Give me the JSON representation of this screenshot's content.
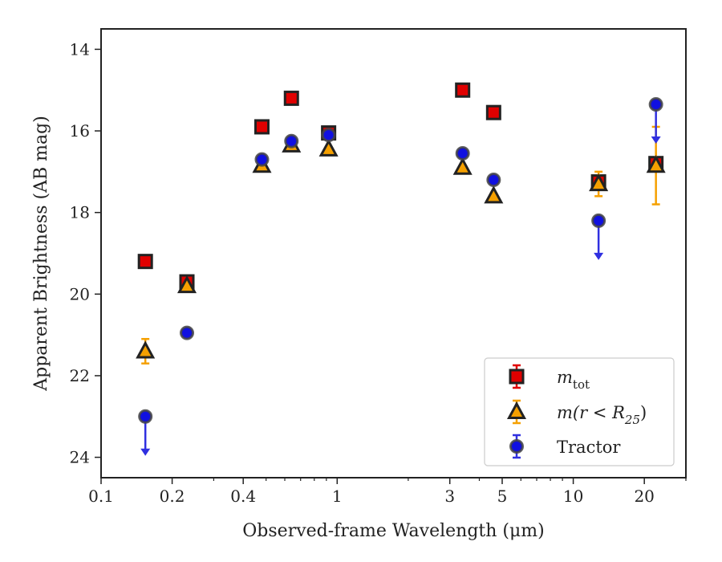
{
  "chart_data": {
    "type": "scatter",
    "xlabel": "Observed-frame Wavelength (μm)",
    "ylabel": "Apparent Brightness (AB mag)",
    "xscale": "log",
    "xlim": [
      0.1,
      30
    ],
    "ylim": [
      24.5,
      13.5
    ],
    "y_inverted": true,
    "x_ticks": [
      0.1,
      0.2,
      0.4,
      1,
      3,
      5,
      10,
      20
    ],
    "x_tick_labels": [
      "0.1",
      "0.2",
      "0.4",
      "1",
      "3",
      "5",
      "10",
      "20"
    ],
    "y_ticks": [
      14,
      16,
      18,
      20,
      22,
      24
    ],
    "y_tick_labels": [
      "14",
      "16",
      "18",
      "20",
      "22",
      "24"
    ],
    "grid": false,
    "legend_position": "bottom-right",
    "series": [
      {
        "name": "m_tot",
        "legend_main": "m",
        "legend_sub": "tot",
        "marker": "square",
        "color": "#e00000",
        "edge_color": "#222222",
        "error_color": "#e00000",
        "points": [
          {
            "x": 0.154,
            "y": 19.2,
            "err": 0.05
          },
          {
            "x": 0.231,
            "y": 19.7,
            "err": 0.05
          },
          {
            "x": 0.48,
            "y": 15.9,
            "err": 0.05
          },
          {
            "x": 0.64,
            "y": 15.2,
            "err": 0.05
          },
          {
            "x": 0.92,
            "y": 16.05,
            "err": 0.05
          },
          {
            "x": 3.4,
            "y": 15.0,
            "err": 0.05
          },
          {
            "x": 4.6,
            "y": 15.55,
            "err": 0.05
          },
          {
            "x": 12.8,
            "y": 17.25,
            "err": 0.05
          },
          {
            "x": 22.4,
            "y": 16.8,
            "err": 0.05
          }
        ]
      },
      {
        "name": "m(r<R_25)",
        "legend_main": "m(r < R",
        "legend_sub": "25",
        "legend_tail": ")",
        "marker": "triangle",
        "color": "#f5a000",
        "edge_color": "#222222",
        "error_color": "#f5a000",
        "points": [
          {
            "x": 0.154,
            "y": 21.4,
            "err": 0.3
          },
          {
            "x": 0.231,
            "y": 19.8,
            "err": 0.05
          },
          {
            "x": 0.48,
            "y": 16.85,
            "err": 0.05
          },
          {
            "x": 0.64,
            "y": 16.35,
            "err": 0.05
          },
          {
            "x": 0.92,
            "y": 16.45,
            "err": 0.05
          },
          {
            "x": 3.4,
            "y": 16.9,
            "err": 0.05
          },
          {
            "x": 4.6,
            "y": 17.6,
            "err": 0.05
          },
          {
            "x": 12.8,
            "y": 17.3,
            "err": 0.3
          },
          {
            "x": 22.4,
            "y": 16.85,
            "err": 0.95
          }
        ]
      },
      {
        "name": "Tractor",
        "legend_main": "Tractor",
        "marker": "circle",
        "color": "#1010e0",
        "edge_color": "#444444",
        "error_color": "#3030e0",
        "points": [
          {
            "x": 0.154,
            "y": 23.0,
            "err": 0.05,
            "upper_limit": true
          },
          {
            "x": 0.231,
            "y": 20.95,
            "err": 0.05
          },
          {
            "x": 0.48,
            "y": 16.7,
            "err": 0.05
          },
          {
            "x": 0.64,
            "y": 16.25,
            "err": 0.05
          },
          {
            "x": 0.92,
            "y": 16.1,
            "err": 0.05
          },
          {
            "x": 3.4,
            "y": 16.55,
            "err": 0.05
          },
          {
            "x": 4.6,
            "y": 17.2,
            "err": 0.05
          },
          {
            "x": 12.8,
            "y": 18.2,
            "err": 0.05,
            "upper_limit": true
          },
          {
            "x": 22.4,
            "y": 15.35,
            "err": 0.05,
            "upper_limit": true
          }
        ]
      }
    ]
  }
}
